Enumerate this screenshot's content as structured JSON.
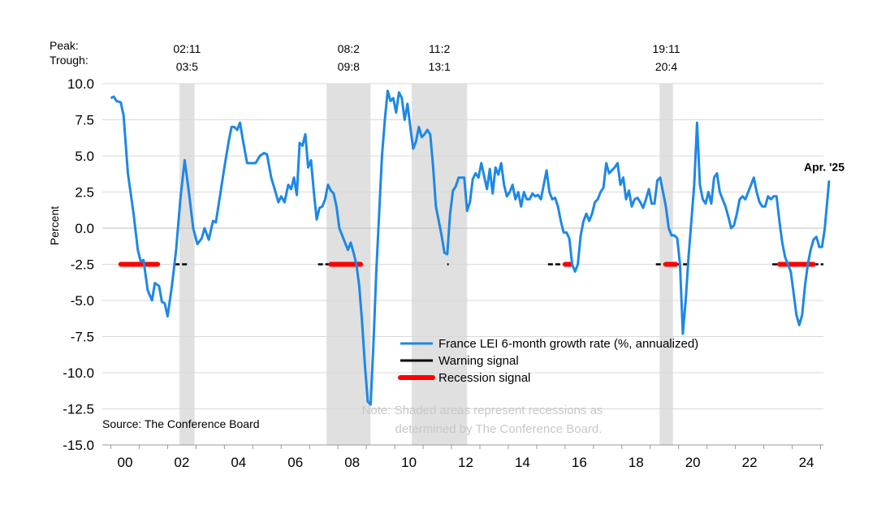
{
  "chart_data": {
    "type": "line",
    "title": "",
    "ylabel": "Percent",
    "xlabel": "",
    "ylim": [
      -15,
      10
    ],
    "xlim": [
      1999.7,
      2025.1
    ],
    "yticks": [
      10.0,
      7.5,
      5.0,
      2.5,
      0.0,
      -2.5,
      -5.0,
      -7.5,
      -10.0,
      -12.5,
      -15.0
    ],
    "ytick_labels": [
      "10.0",
      "7.5",
      "5.0",
      "2.5",
      "0.0",
      "-2.5",
      "-5.0",
      "-7.5",
      "-10.0",
      "-12.5",
      "-15.0"
    ],
    "xtick_labels": [
      {
        "year": 2000,
        "label": "00"
      },
      {
        "year": 2002,
        "label": "02"
      },
      {
        "year": 2004,
        "label": "04"
      },
      {
        "year": 2006,
        "label": "06"
      },
      {
        "year": 2008,
        "label": "08"
      },
      {
        "year": 2010,
        "label": "10"
      },
      {
        "year": 2012,
        "label": "12"
      },
      {
        "year": 2014,
        "label": "14"
      },
      {
        "year": 2016,
        "label": "16"
      },
      {
        "year": 2018,
        "label": "18"
      },
      {
        "year": 2020,
        "label": "20"
      },
      {
        "year": 2022,
        "label": "22"
      },
      {
        "year": 2024,
        "label": "24"
      }
    ],
    "peak_label": "Peak:",
    "trough_label": "Trough:",
    "recessions": [
      {
        "start": 2002.42,
        "end": 2002.95,
        "peak": "02:11",
        "trough": "03:5"
      },
      {
        "start": 2007.6,
        "end": 2009.15,
        "peak": "08:2",
        "trough": "09:8"
      },
      {
        "start": 2010.6,
        "end": 2012.55,
        "peak": "11:2",
        "trough": "13:1"
      },
      {
        "start": 2019.33,
        "end": 2019.8,
        "peak": "19:11",
        "trough": "20:4"
      }
    ],
    "series": [
      {
        "name": "France LEI 6-month growth rate (%, annualized)",
        "color": "#1e88e5",
        "points": [
          [
            2000.0,
            9.0
          ],
          [
            2000.1,
            9.1
          ],
          [
            2000.2,
            8.8
          ],
          [
            2000.35,
            8.7
          ],
          [
            2000.45,
            7.8
          ],
          [
            2000.6,
            3.8
          ],
          [
            2000.8,
            1.0
          ],
          [
            2000.95,
            -1.5
          ],
          [
            2001.05,
            -2.3
          ],
          [
            2001.15,
            -2.2
          ],
          [
            2001.3,
            -4.3
          ],
          [
            2001.45,
            -5.0
          ],
          [
            2001.55,
            -3.8
          ],
          [
            2001.7,
            -4.0
          ],
          [
            2001.8,
            -5.1
          ],
          [
            2001.9,
            -5.2
          ],
          [
            2002.0,
            -6.1
          ],
          [
            2002.15,
            -4.0
          ],
          [
            2002.3,
            -1.5
          ],
          [
            2002.45,
            2.0
          ],
          [
            2002.6,
            4.7
          ],
          [
            2002.75,
            2.5
          ],
          [
            2002.9,
            0.0
          ],
          [
            2003.05,
            -1.1
          ],
          [
            2003.2,
            -0.7
          ],
          [
            2003.3,
            0.0
          ],
          [
            2003.45,
            -0.8
          ],
          [
            2003.6,
            0.5
          ],
          [
            2003.7,
            0.4
          ],
          [
            2003.85,
            2.3
          ],
          [
            2004.0,
            4.2
          ],
          [
            2004.15,
            6.0
          ],
          [
            2004.25,
            7.0
          ],
          [
            2004.35,
            7.0
          ],
          [
            2004.45,
            6.8
          ],
          [
            2004.55,
            7.3
          ],
          [
            2004.65,
            6.1
          ],
          [
            2004.8,
            4.5
          ],
          [
            2004.95,
            4.5
          ],
          [
            2005.1,
            4.5
          ],
          [
            2005.25,
            5.0
          ],
          [
            2005.4,
            5.2
          ],
          [
            2005.5,
            5.1
          ],
          [
            2005.65,
            3.5
          ],
          [
            2005.8,
            2.5
          ],
          [
            2005.9,
            1.8
          ],
          [
            2006.0,
            2.2
          ],
          [
            2006.12,
            1.8
          ],
          [
            2006.25,
            3.0
          ],
          [
            2006.35,
            2.7
          ],
          [
            2006.45,
            3.5
          ],
          [
            2006.55,
            2.3
          ],
          [
            2006.65,
            5.9
          ],
          [
            2006.75,
            5.7
          ],
          [
            2006.85,
            6.5
          ],
          [
            2006.95,
            4.2
          ],
          [
            2007.05,
            4.7
          ],
          [
            2007.15,
            2.5
          ],
          [
            2007.25,
            0.6
          ],
          [
            2007.35,
            1.4
          ],
          [
            2007.45,
            1.5
          ],
          [
            2007.55,
            2.0
          ],
          [
            2007.65,
            3.0
          ],
          [
            2007.75,
            2.6
          ],
          [
            2007.85,
            2.4
          ],
          [
            2007.95,
            1.5
          ],
          [
            2008.05,
            0.0
          ],
          [
            2008.15,
            -0.5
          ],
          [
            2008.25,
            -1.0
          ],
          [
            2008.35,
            -1.5
          ],
          [
            2008.45,
            -1.0
          ],
          [
            2008.55,
            -1.7
          ],
          [
            2008.65,
            -2.5
          ],
          [
            2008.75,
            -4.0
          ],
          [
            2008.85,
            -6.5
          ],
          [
            2008.95,
            -9.5
          ],
          [
            2009.05,
            -12.0
          ],
          [
            2009.15,
            -12.2
          ],
          [
            2009.25,
            -8.0
          ],
          [
            2009.35,
            -3.0
          ],
          [
            2009.45,
            1.0
          ],
          [
            2009.55,
            5.0
          ],
          [
            2009.65,
            7.5
          ],
          [
            2009.75,
            9.5
          ],
          [
            2009.85,
            8.8
          ],
          [
            2009.95,
            9.0
          ],
          [
            2010.05,
            8.0
          ],
          [
            2010.15,
            9.4
          ],
          [
            2010.25,
            9.0
          ],
          [
            2010.35,
            7.5
          ],
          [
            2010.45,
            8.6
          ],
          [
            2010.55,
            7.0
          ],
          [
            2010.65,
            5.5
          ],
          [
            2010.75,
            6.0
          ],
          [
            2010.85,
            7.0
          ],
          [
            2010.95,
            6.3
          ],
          [
            2011.05,
            6.5
          ],
          [
            2011.15,
            6.8
          ],
          [
            2011.25,
            6.5
          ],
          [
            2011.35,
            4.3
          ],
          [
            2011.45,
            1.5
          ],
          [
            2011.55,
            0.5
          ],
          [
            2011.65,
            -0.5
          ],
          [
            2011.75,
            -1.7
          ],
          [
            2011.85,
            -1.8
          ],
          [
            2011.95,
            1.0
          ],
          [
            2012.05,
            2.6
          ],
          [
            2012.15,
            2.9
          ],
          [
            2012.25,
            3.5
          ],
          [
            2012.35,
            3.5
          ],
          [
            2012.45,
            3.5
          ],
          [
            2012.55,
            1.2
          ],
          [
            2012.65,
            1.8
          ],
          [
            2012.75,
            3.4
          ],
          [
            2012.85,
            3.8
          ],
          [
            2012.95,
            3.5
          ],
          [
            2013.05,
            4.5
          ],
          [
            2013.15,
            3.6
          ],
          [
            2013.25,
            2.7
          ],
          [
            2013.35,
            4.1
          ],
          [
            2013.45,
            2.4
          ],
          [
            2013.55,
            4.2
          ],
          [
            2013.65,
            3.7
          ],
          [
            2013.75,
            4.5
          ],
          [
            2013.85,
            3.0
          ],
          [
            2013.95,
            2.2
          ],
          [
            2014.05,
            2.5
          ],
          [
            2014.15,
            3.0
          ],
          [
            2014.25,
            2.0
          ],
          [
            2014.35,
            2.5
          ],
          [
            2014.45,
            1.5
          ],
          [
            2014.55,
            2.5
          ],
          [
            2014.65,
            2.0
          ],
          [
            2014.75,
            2.0
          ],
          [
            2014.85,
            2.4
          ],
          [
            2014.95,
            2.2
          ],
          [
            2015.05,
            2.3
          ],
          [
            2015.15,
            2.0
          ],
          [
            2015.25,
            3.0
          ],
          [
            2015.35,
            4.0
          ],
          [
            2015.45,
            2.5
          ],
          [
            2015.55,
            2.0
          ],
          [
            2015.65,
            2.1
          ],
          [
            2015.75,
            1.5
          ],
          [
            2015.85,
            0.5
          ],
          [
            2015.95,
            -0.3
          ],
          [
            2016.05,
            -0.3
          ],
          [
            2016.15,
            -0.7
          ],
          [
            2016.25,
            -2.5
          ],
          [
            2016.35,
            -3.0
          ],
          [
            2016.45,
            -2.5
          ],
          [
            2016.55,
            -0.5
          ],
          [
            2016.65,
            0.5
          ],
          [
            2016.75,
            1.0
          ],
          [
            2016.85,
            0.5
          ],
          [
            2016.95,
            1.0
          ],
          [
            2017.05,
            1.8
          ],
          [
            2017.15,
            2.0
          ],
          [
            2017.25,
            2.5
          ],
          [
            2017.35,
            2.8
          ],
          [
            2017.45,
            4.5
          ],
          [
            2017.55,
            3.8
          ],
          [
            2017.65,
            4.0
          ],
          [
            2017.75,
            4.2
          ],
          [
            2017.85,
            4.5
          ],
          [
            2017.95,
            3.0
          ],
          [
            2018.05,
            3.5
          ],
          [
            2018.15,
            2.0
          ],
          [
            2018.25,
            2.6
          ],
          [
            2018.35,
            1.5
          ],
          [
            2018.45,
            2.0
          ],
          [
            2018.55,
            2.1
          ],
          [
            2018.65,
            1.8
          ],
          [
            2018.75,
            1.4
          ],
          [
            2018.85,
            2.0
          ],
          [
            2018.95,
            2.7
          ],
          [
            2019.05,
            1.7
          ],
          [
            2019.15,
            1.7
          ],
          [
            2019.25,
            3.3
          ],
          [
            2019.35,
            3.5
          ],
          [
            2019.45,
            2.5
          ],
          [
            2019.55,
            1.5
          ],
          [
            2019.65,
            0.0
          ],
          [
            2019.75,
            -0.5
          ],
          [
            2019.85,
            -0.5
          ],
          [
            2019.95,
            -0.7
          ],
          [
            2020.05,
            -2.5
          ],
          [
            2020.15,
            -7.3
          ],
          [
            2020.25,
            -5.0
          ],
          [
            2020.35,
            -2.0
          ],
          [
            2020.45,
            0.5
          ],
          [
            2020.55,
            3.0
          ],
          [
            2020.65,
            7.3
          ],
          [
            2020.75,
            3.0
          ],
          [
            2020.85,
            2.0
          ],
          [
            2020.95,
            1.7
          ],
          [
            2021.05,
            2.5
          ],
          [
            2021.15,
            1.7
          ],
          [
            2021.25,
            3.5
          ],
          [
            2021.35,
            3.8
          ],
          [
            2021.45,
            2.5
          ],
          [
            2021.55,
            2.0
          ],
          [
            2021.65,
            1.5
          ],
          [
            2021.75,
            0.8
          ],
          [
            2021.85,
            0.0
          ],
          [
            2021.95,
            0.2
          ],
          [
            2022.05,
            1.0
          ],
          [
            2022.15,
            2.0
          ],
          [
            2022.25,
            2.2
          ],
          [
            2022.35,
            2.0
          ],
          [
            2022.45,
            2.5
          ],
          [
            2022.55,
            3.0
          ],
          [
            2022.65,
            3.5
          ],
          [
            2022.75,
            2.5
          ],
          [
            2022.85,
            1.8
          ],
          [
            2022.95,
            1.5
          ],
          [
            2023.05,
            1.5
          ],
          [
            2023.15,
            2.2
          ],
          [
            2023.25,
            2.0
          ],
          [
            2023.35,
            2.2
          ],
          [
            2023.45,
            2.2
          ],
          [
            2023.55,
            0.5
          ],
          [
            2023.65,
            -1.0
          ],
          [
            2023.75,
            -2.0
          ],
          [
            2023.85,
            -2.5
          ],
          [
            2023.95,
            -3.0
          ],
          [
            2024.05,
            -4.5
          ],
          [
            2024.15,
            -6.0
          ],
          [
            2024.25,
            -6.7
          ],
          [
            2024.35,
            -6.0
          ],
          [
            2024.45,
            -4.0
          ],
          [
            2024.55,
            -2.5
          ],
          [
            2024.65,
            -1.5
          ],
          [
            2024.75,
            -0.8
          ],
          [
            2024.85,
            -0.6
          ],
          [
            2024.9,
            -0.9
          ],
          [
            2024.95,
            -1.3
          ],
          [
            2025.05,
            -1.3
          ],
          [
            2025.15,
            0.0
          ],
          [
            2025.3,
            3.3
          ]
        ]
      },
      {
        "name": "Warning signal",
        "color": "#000000"
      },
      {
        "name": "Recession signal",
        "color": "#ff0000"
      }
    ],
    "signal_level": -2.5,
    "warning_segments": [
      [
        2002.25,
        2002.75
      ],
      [
        2007.3,
        2007.75
      ],
      [
        2011.85,
        2011.9
      ],
      [
        2015.4,
        2016.2
      ],
      [
        2019.2,
        2019.55
      ],
      [
        2019.9,
        2020.3
      ],
      [
        2023.3,
        2023.55
      ],
      [
        2024.75,
        2025.1
      ]
    ],
    "recession_segments": [
      [
        2000.35,
        2001.65
      ],
      [
        2007.75,
        2008.8
      ],
      [
        2016.0,
        2016.2
      ],
      [
        2019.55,
        2019.9
      ],
      [
        2023.55,
        2024.75
      ]
    ],
    "annotation": {
      "year": 2025.3,
      "value": 3.3,
      "text": "Apr. '25"
    },
    "note": [
      "Note: Shaded areas represent recessions as",
      "determined by The Conference Board."
    ],
    "source": "Source: The Conference Board"
  },
  "colors": {
    "line": "#1e88e5",
    "warning": "#000000",
    "recession": "#ff0000",
    "shade": "#e0e0e0",
    "grid": "#d9d9d9"
  }
}
